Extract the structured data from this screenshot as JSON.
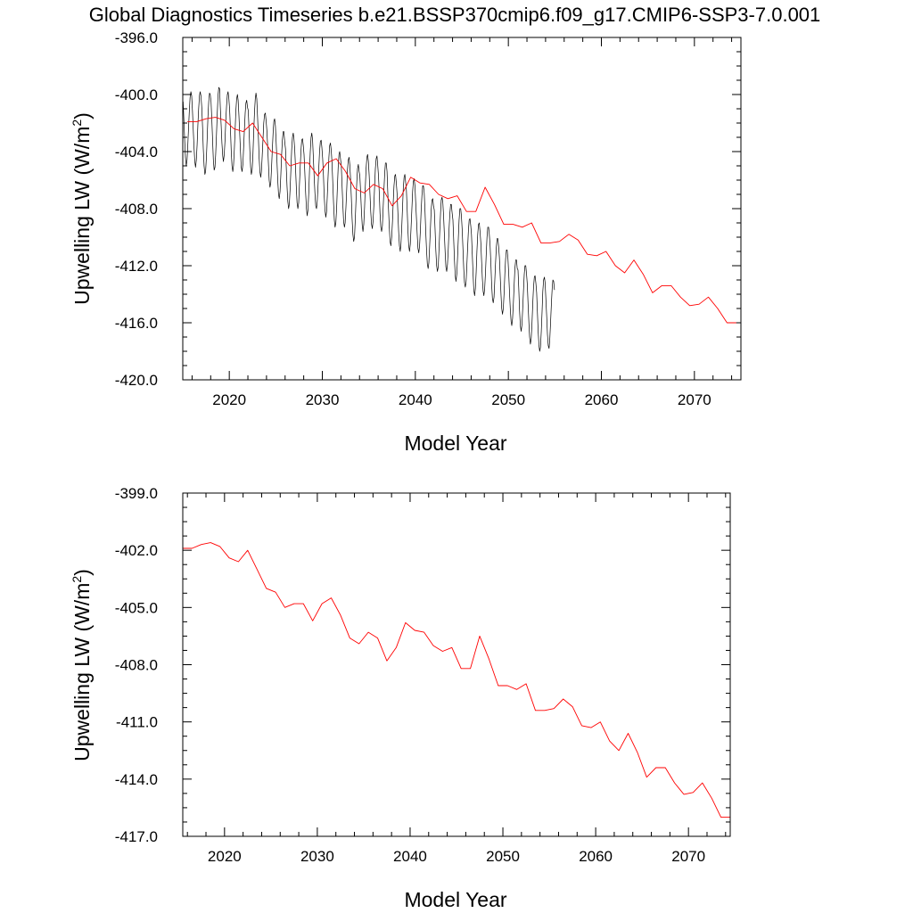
{
  "title": "Global Diagnostics Timeseries b.e21.BSSP370cmip6.f09_g17.CMIP6-SSP3-7.0.001",
  "colors": {
    "monthly": "#000000",
    "annual": "#ff0000",
    "axis": "#000000"
  },
  "chart_data": [
    {
      "type": "line",
      "xlabel": "Model Year",
      "ylabel": "Upwelling LW (W/m",
      "ylabel_sup": "2",
      "ylabel_close": ")",
      "xlim": [
        2015,
        2075
      ],
      "ylim": [
        -420,
        -396
      ],
      "xticks": [
        2020,
        2030,
        2040,
        2050,
        2060,
        2070
      ],
      "xtick_labels": [
        "2020",
        "2030",
        "2040",
        "2050",
        "2060",
        "2070"
      ],
      "yticks": [
        -396,
        -400,
        -404,
        -408,
        -412,
        -416,
        -420
      ],
      "ytick_labels": [
        "-396.0",
        "-400.0",
        "-404.0",
        "-408.0",
        "-412.0",
        "-416.0",
        "-420.0"
      ],
      "series": [
        {
          "kind": "monthly",
          "x_start": 2015.04,
          "x_step": 0.08333,
          "values": [
            -400.5,
            -401.9,
            -403.3,
            -404.4,
            -405.0,
            -404.6,
            -403.6,
            -402.3,
            -401.1,
            -400.2,
            -399.8,
            -400.1,
            -401.2,
            -402.4,
            -403.7,
            -404.7,
            -405.1,
            -404.6,
            -403.5,
            -402.2,
            -401.0,
            -400.1,
            -399.8,
            -400.1,
            -400.9,
            -402.3,
            -403.8,
            -405.0,
            -405.6,
            -405.4,
            -404.4,
            -403.0,
            -401.6,
            -400.5,
            -399.9,
            -400.0,
            -400.5,
            -401.8,
            -403.3,
            -404.6,
            -405.3,
            -405.1,
            -404.2,
            -402.8,
            -401.3,
            -400.1,
            -399.5,
            -399.6,
            -400.9,
            -402.1,
            -403.4,
            -404.3,
            -404.7,
            -404.2,
            -403.2,
            -401.9,
            -400.8,
            -400.0,
            -399.8,
            -400.3,
            -401.1,
            -402.5,
            -403.9,
            -405.0,
            -405.4,
            -405.0,
            -403.9,
            -402.5,
            -401.2,
            -400.3,
            -400.0,
            -400.4,
            -401.5,
            -402.8,
            -404.1,
            -405.1,
            -405.4,
            -404.9,
            -403.8,
            -402.5,
            -401.3,
            -400.6,
            -400.4,
            -400.9,
            -401.1,
            -402.4,
            -403.9,
            -405.1,
            -405.6,
            -405.3,
            -404.2,
            -402.7,
            -401.3,
            -400.3,
            -399.9,
            -400.3,
            -401.6,
            -403.0,
            -404.4,
            -405.4,
            -405.8,
            -405.4,
            -404.3,
            -403.1,
            -402.0,
            -401.4,
            -401.3,
            -401.8,
            -402.5,
            -403.6,
            -404.9,
            -406.0,
            -406.5,
            -406.2,
            -405.2,
            -403.9,
            -402.7,
            -401.9,
            -401.7,
            -402.2,
            -403.3,
            -404.6,
            -406.0,
            -407.0,
            -407.3,
            -406.8,
            -405.6,
            -404.3,
            -403.2,
            -402.6,
            -402.6,
            -403.3,
            -403.8,
            -405.0,
            -406.4,
            -407.5,
            -408.0,
            -407.7,
            -406.6,
            -405.2,
            -403.9,
            -403.0,
            -402.7,
            -403.1,
            -403.9,
            -405.2,
            -406.6,
            -407.6,
            -408.0,
            -407.6,
            -406.4,
            -405.1,
            -403.9,
            -403.2,
            -403.1,
            -403.6,
            -404.2,
            -405.5,
            -406.9,
            -408.0,
            -408.5,
            -408.1,
            -406.9,
            -405.4,
            -404.0,
            -403.0,
            -402.7,
            -403.2,
            -404.5,
            -405.7,
            -406.9,
            -407.8,
            -408.0,
            -407.5,
            -406.4,
            -405.1,
            -404.0,
            -403.3,
            -403.2,
            -403.7,
            -404.5,
            -405.7,
            -407.1,
            -408.1,
            -408.6,
            -408.2,
            -407.1,
            -405.7,
            -404.4,
            -403.6,
            -403.4,
            -403.9,
            -404.7,
            -406.1,
            -407.6,
            -408.8,
            -409.3,
            -409.0,
            -407.9,
            -406.5,
            -405.1,
            -404.2,
            -404.0,
            -404.5,
            -405.0,
            -406.3,
            -407.7,
            -408.9,
            -409.3,
            -409.0,
            -407.9,
            -406.6,
            -405.3,
            -404.6,
            -404.4,
            -404.9,
            -405.9,
            -407.3,
            -408.7,
            -409.8,
            -410.3,
            -410.0,
            -408.9,
            -407.4,
            -406.1,
            -405.2,
            -404.9,
            -405.4,
            -405.7,
            -406.9,
            -408.2,
            -409.2,
            -409.6,
            -409.1,
            -407.9,
            -406.5,
            -405.2,
            -404.4,
            -404.2,
            -404.7,
            -405.7,
            -406.9,
            -408.2,
            -409.1,
            -409.4,
            -408.9,
            -407.8,
            -406.4,
            -405.2,
            -404.5,
            -404.3,
            -404.9,
            -405.7,
            -406.9,
            -408.3,
            -409.3,
            -409.6,
            -409.2,
            -408.0,
            -406.7,
            -405.5,
            -404.8,
            -404.8,
            -405.4,
            -406.8,
            -408.1,
            -409.4,
            -410.3,
            -410.6,
            -410.0,
            -408.9,
            -407.6,
            -406.4,
            -405.7,
            -405.6,
            -406.2,
            -407.0,
            -408.2,
            -409.6,
            -410.6,
            -411.0,
            -410.5,
            -409.3,
            -407.9,
            -406.6,
            -405.8,
            -405.6,
            -406.1,
            -406.7,
            -408.1,
            -409.5,
            -410.6,
            -411.0,
            -410.5,
            -409.4,
            -408.1,
            -406.8,
            -406.1,
            -405.9,
            -406.4,
            -407.5,
            -408.7,
            -409.9,
            -410.8,
            -411.1,
            -410.6,
            -409.5,
            -408.2,
            -407.1,
            -406.4,
            -406.4,
            -406.9,
            -408.2,
            -409.6,
            -410.9,
            -411.9,
            -412.2,
            -411.8,
            -410.6,
            -409.3,
            -408.1,
            -407.4,
            -407.3,
            -407.8,
            -408.1,
            -409.5,
            -410.9,
            -412.0,
            -412.4,
            -412.1,
            -411.0,
            -409.6,
            -408.3,
            -407.4,
            -407.2,
            -407.6,
            -408.5,
            -409.8,
            -411.1,
            -412.1,
            -412.4,
            -411.9,
            -410.8,
            -409.5,
            -408.4,
            -407.7,
            -407.7,
            -408.3,
            -408.8,
            -410.1,
            -411.6,
            -412.7,
            -413.1,
            -412.6,
            -411.4,
            -410.0,
            -408.8,
            -408.0,
            -408.0,
            -408.5,
            -409.5,
            -410.9,
            -412.2,
            -413.2,
            -413.5,
            -413.1,
            -412.0,
            -410.7,
            -409.5,
            -408.8,
            -408.7,
            -409.2,
            -409.8,
            -411.2,
            -412.6,
            -413.7,
            -414.1,
            -413.6,
            -412.4,
            -411.0,
            -409.8,
            -409.1,
            -409.0,
            -409.6,
            -410.4,
            -411.6,
            -412.9,
            -413.8,
            -414.1,
            -413.6,
            -412.5,
            -411.1,
            -410.0,
            -409.3,
            -409.3,
            -409.8,
            -410.6,
            -411.9,
            -413.3,
            -414.3,
            -414.6,
            -414.2,
            -413.1,
            -411.8,
            -410.7,
            -410.1,
            -410.1,
            -410.7,
            -411.4,
            -412.7,
            -414.0,
            -415.0,
            -415.4,
            -415.0,
            -413.9,
            -412.6,
            -411.5,
            -410.9,
            -410.9,
            -411.5,
            -412.6,
            -413.8,
            -415.0,
            -415.9,
            -416.2,
            -415.7,
            -414.6,
            -413.3,
            -412.2,
            -411.6,
            -411.6,
            -412.2,
            -412.3,
            -413.7,
            -415.1,
            -416.2,
            -416.6,
            -416.2,
            -415.1,
            -413.8,
            -412.6,
            -412.0,
            -412.0,
            -412.6,
            -413.3,
            -414.7,
            -416.0,
            -417.0,
            -417.5,
            -417.1,
            -416.0,
            -414.7,
            -413.5,
            -412.8,
            -412.7,
            -413.2,
            -413.9,
            -415.2,
            -416.6,
            -417.6,
            -418.0,
            -417.7,
            -416.6,
            -415.2,
            -413.8,
            -413.0,
            -412.8,
            -413.2,
            -414.4,
            -415.6,
            -416.8,
            -417.6,
            -417.8,
            -417.2,
            -416.0,
            -414.7,
            -413.6,
            -413.0,
            -413.1,
            -413.7
          ]
        },
        {
          "kind": "annual",
          "x": [
            2015.5,
            2016.5,
            2017.5,
            2018.5,
            2019.5,
            2020.5,
            2021.5,
            2022.5,
            2023.5,
            2024.5,
            2025.5,
            2026.5,
            2027.5,
            2028.5,
            2029.5,
            2030.5,
            2031.5,
            2032.5,
            2033.5,
            2034.5,
            2035.5,
            2036.5,
            2037.5,
            2038.5,
            2039.5,
            2040.5,
            2041.5,
            2042.5,
            2043.5,
            2044.5,
            2045.5,
            2046.5,
            2047.5,
            2048.5,
            2049.5,
            2050.5,
            2051.5,
            2052.5,
            2053.5,
            2054.5,
            2055.5,
            2056.5,
            2057.5,
            2058.5,
            2059.5,
            2060.5,
            2061.5,
            2062.5,
            2063.5,
            2064.5,
            2065.5,
            2066.5,
            2067.5,
            2068.5,
            2069.5,
            2070.5,
            2071.5,
            2072.5,
            2073.5,
            2074.5
          ],
          "values": [
            -401.9,
            -401.9,
            -401.7,
            -401.6,
            -401.8,
            -402.4,
            -402.6,
            -402.0,
            -403.0,
            -404.0,
            -404.2,
            -405.0,
            -404.8,
            -404.8,
            -405.7,
            -404.8,
            -404.5,
            -405.4,
            -406.6,
            -406.9,
            -406.3,
            -406.6,
            -407.8,
            -407.1,
            -405.8,
            -406.2,
            -406.3,
            -407.0,
            -407.3,
            -407.1,
            -408.2,
            -408.2,
            -406.5,
            -407.7,
            -409.1,
            -409.1,
            -409.3,
            -409.0,
            -410.4,
            -410.4,
            -410.3,
            -409.8,
            -410.2,
            -411.2,
            -411.3,
            -411.0,
            -412.0,
            -412.5,
            -411.6,
            -412.6,
            -413.9,
            -413.4,
            -413.4,
            -414.2,
            -414.8,
            -414.7,
            -414.2,
            -415.0,
            -416.0,
            -416.0
          ]
        }
      ]
    },
    {
      "type": "line",
      "xlabel": "Model Year",
      "ylabel": "Upwelling LW (W/m",
      "ylabel_sup": "2",
      "ylabel_close": ")",
      "xlim": [
        2015.5,
        2074.5
      ],
      "ylim": [
        -417,
        -399
      ],
      "xticks": [
        2020,
        2030,
        2040,
        2050,
        2060,
        2070
      ],
      "xtick_labels": [
        "2020",
        "2030",
        "2040",
        "2050",
        "2060",
        "2070"
      ],
      "yticks": [
        -399,
        -402,
        -405,
        -408,
        -411,
        -414,
        -417
      ],
      "ytick_labels": [
        "-399.0",
        "-402.0",
        "-405.0",
        "-408.0",
        "-411.0",
        "-414.0",
        "-417.0"
      ],
      "series": [
        {
          "kind": "annual",
          "x": [
            2015.5,
            2016.5,
            2017.5,
            2018.5,
            2019.5,
            2020.5,
            2021.5,
            2022.5,
            2023.5,
            2024.5,
            2025.5,
            2026.5,
            2027.5,
            2028.5,
            2029.5,
            2030.5,
            2031.5,
            2032.5,
            2033.5,
            2034.5,
            2035.5,
            2036.5,
            2037.5,
            2038.5,
            2039.5,
            2040.5,
            2041.5,
            2042.5,
            2043.5,
            2044.5,
            2045.5,
            2046.5,
            2047.5,
            2048.5,
            2049.5,
            2050.5,
            2051.5,
            2052.5,
            2053.5,
            2054.5,
            2055.5,
            2056.5,
            2057.5,
            2058.5,
            2059.5,
            2060.5,
            2061.5,
            2062.5,
            2063.5,
            2064.5,
            2065.5,
            2066.5,
            2067.5,
            2068.5,
            2069.5,
            2070.5,
            2071.5,
            2072.5,
            2073.5,
            2074.5
          ],
          "values": [
            -401.9,
            -401.9,
            -401.7,
            -401.6,
            -401.8,
            -402.4,
            -402.6,
            -402.0,
            -403.0,
            -404.0,
            -404.2,
            -405.0,
            -404.8,
            -404.8,
            -405.7,
            -404.8,
            -404.5,
            -405.4,
            -406.6,
            -406.9,
            -406.3,
            -406.6,
            -407.8,
            -407.1,
            -405.8,
            -406.2,
            -406.3,
            -407.0,
            -407.3,
            -407.1,
            -408.2,
            -408.2,
            -406.5,
            -407.7,
            -409.1,
            -409.1,
            -409.3,
            -409.0,
            -410.4,
            -410.4,
            -410.3,
            -409.8,
            -410.2,
            -411.2,
            -411.3,
            -411.0,
            -412.0,
            -412.5,
            -411.6,
            -412.6,
            -413.9,
            -413.4,
            -413.4,
            -414.2,
            -414.8,
            -414.7,
            -414.2,
            -415.0,
            -416.0,
            -416.0
          ]
        }
      ]
    }
  ]
}
